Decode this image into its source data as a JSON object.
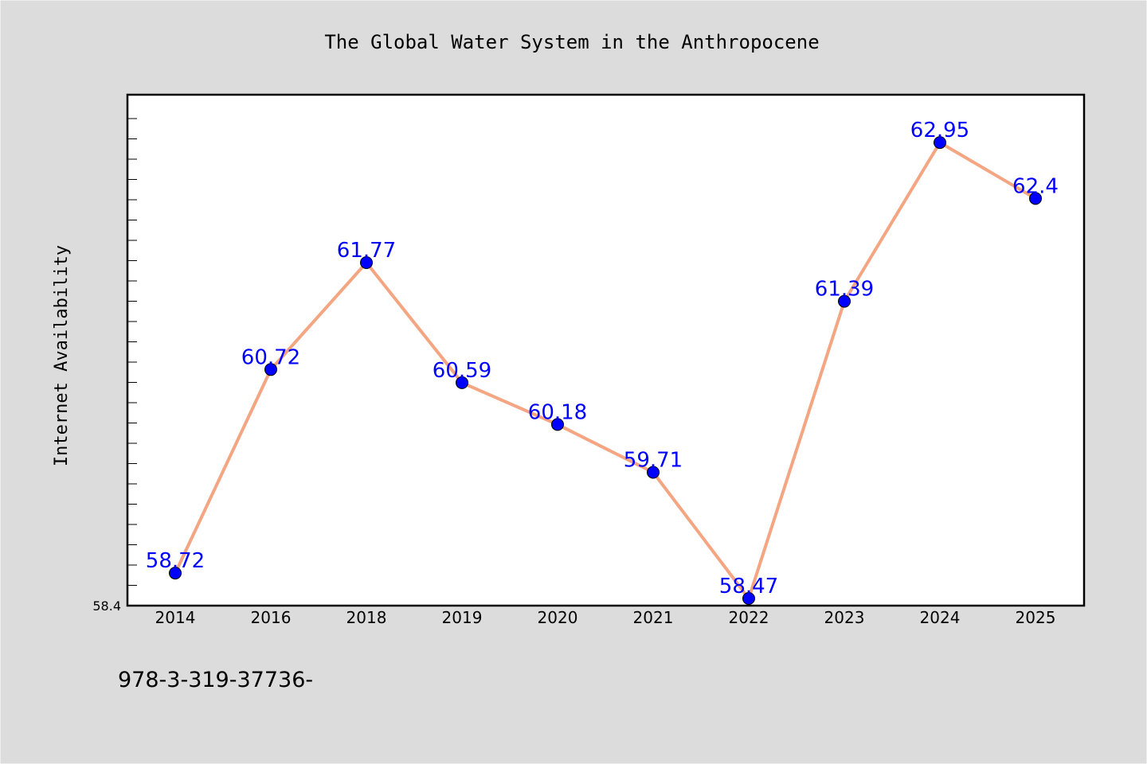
{
  "chart_data": {
    "type": "line",
    "title": "The Global Water System in the Anthropocene",
    "xlabel": "",
    "ylabel": "Internet Availability",
    "categories": [
      "2014",
      "2016",
      "2018",
      "2019",
      "2020",
      "2021",
      "2022",
      "2023",
      "2024",
      "2025"
    ],
    "series": [
      {
        "values": [
          58.72,
          60.72,
          61.77,
          60.59,
          60.18,
          59.71,
          58.47,
          61.39,
          62.95,
          62.4
        ]
      }
    ],
    "data_labels": [
      "58.72",
      "60.72",
      "61.77",
      "60.59",
      "60.18",
      "59.71",
      "58.47",
      "61.39",
      "62.95",
      "62.4"
    ],
    "ylim": [
      58.4,
      63.42
    ],
    "y_tick_label": "58.4",
    "grid": false,
    "line_color": "#f4a582",
    "marker_color": "#0000ff",
    "label_color": "#0000ff",
    "background_color": "#dcdcdc",
    "plot_background": "#ffffff"
  },
  "footer": {
    "isbn": "978-3-319-37736-"
  }
}
